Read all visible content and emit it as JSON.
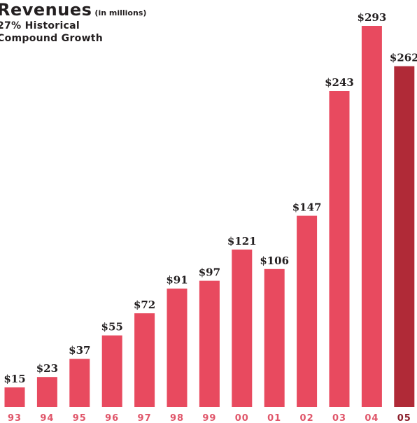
{
  "chart_data": {
    "type": "bar",
    "title": "Revenues",
    "title_unit": "(in millions)",
    "subtitle_lines": [
      "27% Historical",
      "Compound Growth"
    ],
    "categories": [
      "93",
      "94",
      "95",
      "96",
      "97",
      "98",
      "99",
      "00",
      "01",
      "02",
      "03",
      "04",
      "05"
    ],
    "values": [
      15,
      23,
      37,
      55,
      72,
      91,
      97,
      121,
      106,
      147,
      243,
      293,
      262
    ],
    "value_labels": [
      "$15",
      "$23",
      "$37",
      "$55",
      "$72",
      "$91",
      "$97",
      "$121",
      "$106",
      "$147",
      "$243",
      "$293",
      "$262"
    ],
    "ylim": [
      0,
      300
    ],
    "grid": false,
    "legend": "none",
    "xlabel": "",
    "ylabel": "",
    "colors": {
      "bar": "#e84a5f",
      "highlight_bar": "#b02a37",
      "tick_text": "#e0566a",
      "highlight_tick_text": "#8b1e2b",
      "text": "#231f20"
    },
    "highlight_index": 12
  }
}
